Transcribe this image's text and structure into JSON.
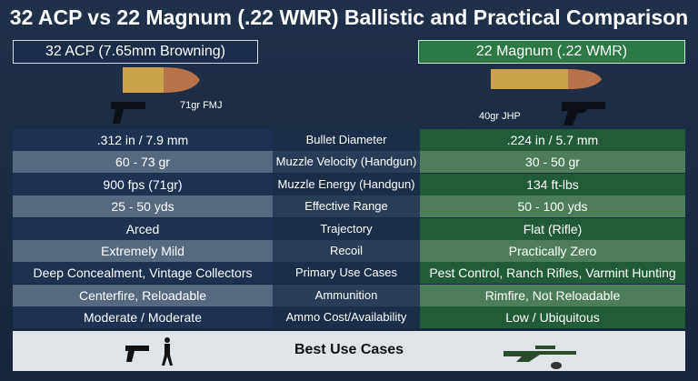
{
  "header": {
    "title": "32 ACP vs 22 Magnum (.22 WMR) Ballistic and Practical Comparison"
  },
  "columns": {
    "left": {
      "title": "32 ACP (7.65mm Browning)",
      "caption": "71gr FMJ"
    },
    "right": {
      "title": "22 Magnum (.22 WMR)",
      "caption": "40gr JHP"
    }
  },
  "table": {
    "rows": [
      [
        ".312 in / 7.9 mm",
        "Bullet Diameter",
        ".224 in / 5.7 mm"
      ],
      [
        "60 - 73 gr",
        "Muzzle Velocity (Handgun)",
        "30 - 50 gr"
      ],
      [
        "900 fps (71gr)",
        "Muzzle Energy (Handgun)",
        "134 ft-lbs"
      ],
      [
        "25 - 50 yds",
        "Effective Range",
        "50 - 100 yds"
      ],
      [
        "Arced",
        "Trajectory",
        "Flat (Rifle)"
      ],
      [
        "Extremely Mild",
        "Recoil",
        "Practically Zero"
      ],
      [
        "Deep Concealment, Vintage Collectors",
        "Primary Use Cases",
        "Pest Control, Ranch Rifles, Varmint Hunting"
      ],
      [
        "Centerfire, Reloadable",
        "Ammunition",
        "Rimfire, Not Reloadable"
      ],
      [
        "Moderate / Moderate",
        "Ammo Cost/Availability",
        "Low / Ubiquitous"
      ]
    ]
  },
  "footer": {
    "title": "Best Use Cases"
  }
}
